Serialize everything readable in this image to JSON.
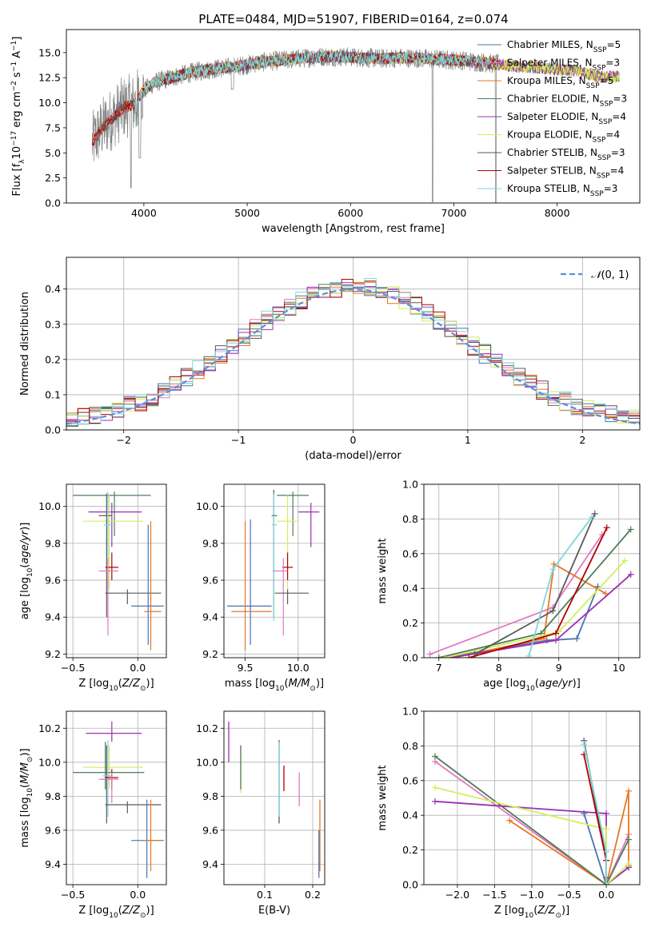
{
  "figure": {
    "title": "PLATE=0484, MJD=51907, FIBERID=0164, z=0.074"
  },
  "colors": {
    "chabrier_miles": "#4c72b0",
    "salpeter_miles": "#e377c2",
    "kroupa_miles": "#e87722",
    "chabrier_elodie": "#4e7d5a",
    "salpeter_elodie": "#9b30b0",
    "kroupa_elodie": "#d4ee5e",
    "chabrier_stelib": "#5a5a5a",
    "salpeter_stelib": "#b00000",
    "kroupa_stelib": "#7fd6dc",
    "data": "#808080",
    "normal": "#5b8fd6"
  },
  "chart_data": [
    {
      "id": "spectrum",
      "type": "line",
      "title": "PLATE=0484, MJD=51907, FIBERID=0164, z=0.074",
      "xlabel": "wavelength [Angstrom, rest frame]",
      "ylabel": "Flux [f_λ 10^-17 erg cm^-2 s^-1 A^-1]",
      "xlim": [
        3250,
        8800
      ],
      "ylim": [
        0,
        17.3
      ],
      "xticks": [
        4000,
        5000,
        6000,
        7000,
        8000
      ],
      "xtick_labels": [
        "4000",
        "5000",
        "6000",
        "7000",
        "8000"
      ],
      "yticks": [
        0,
        2.5,
        5,
        7.5,
        10,
        12.5,
        15
      ],
      "ytick_labels": [
        "0.0",
        "2.5",
        "5.0",
        "7.5",
        "10.0",
        "12.5",
        "15.0"
      ],
      "grid": false,
      "legend_position": "top-right",
      "legend": [
        {
          "name": "Chabrier MILES",
          "n": "5",
          "color_key": "chabrier_miles"
        },
        {
          "name": "Salpeter MILES",
          "n": "3",
          "color_key": "salpeter_miles"
        },
        {
          "name": "Kroupa MILES",
          "n": "5",
          "color_key": "kroupa_miles"
        },
        {
          "name": "Chabrier ELODIE",
          "n": "3",
          "color_key": "chabrier_elodie"
        },
        {
          "name": "Salpeter ELODIE",
          "n": "4",
          "color_key": "salpeter_elodie"
        },
        {
          "name": "Kroupa ELODIE",
          "n": "4",
          "color_key": "kroupa_elodie"
        },
        {
          "name": "Chabrier STELIB",
          "n": "3",
          "color_key": "chabrier_stelib"
        },
        {
          "name": "Salpeter STELIB",
          "n": "4",
          "color_key": "salpeter_stelib"
        },
        {
          "name": "Kroupa STELIB",
          "n": "3",
          "color_key": "kroupa_stelib"
        }
      ],
      "continuum": {
        "x": [
          3500,
          3600,
          3700,
          3800,
          3900,
          4000,
          4100,
          4300,
          4500,
          4700,
          4900,
          5100,
          5300,
          5500,
          5700,
          5900,
          6100,
          6300,
          6500,
          6700,
          6900,
          7100,
          7300,
          7450
        ],
        "y": [
          6.0,
          7.5,
          8.5,
          9.5,
          9.8,
          11.2,
          12.0,
          12.6,
          13.1,
          13.4,
          13.6,
          14.0,
          14.2,
          14.4,
          14.6,
          14.6,
          14.5,
          14.4,
          14.5,
          14.4,
          14.3,
          14.2,
          14.0,
          13.8
        ]
      },
      "model_extension": {
        "x": [
          7450,
          7600,
          7800,
          8000,
          8200,
          8400,
          8600
        ],
        "y": [
          13.8,
          13.6,
          13.5,
          13.3,
          13.2,
          12.6,
          12.6
        ]
      }
    },
    {
      "id": "residuals",
      "type": "line",
      "xlabel": "(data-model)/error",
      "ylabel": "Normed distribution",
      "xlim": [
        -2.5,
        2.5
      ],
      "ylim": [
        0,
        0.49
      ],
      "xticks": [
        -2,
        -1,
        0,
        1,
        2
      ],
      "xtick_labels": [
        "−2",
        "−1",
        "0",
        "1",
        "2"
      ],
      "yticks": [
        0,
        0.1,
        0.2,
        0.3,
        0.4
      ],
      "ytick_labels": [
        "0.0",
        "0.1",
        "0.2",
        "0.3",
        "0.4"
      ],
      "grid": true,
      "legend_position": "top-right",
      "legend_label": "N(0, 1)",
      "bin_width": 0.1,
      "bin_start": -2.5
    },
    {
      "id": "age_vs_Z",
      "type": "scatter",
      "xlabel": "Z [log10(Z/Z⊙)]",
      "ylabel": "age [log10(age/yr)]",
      "xlim": [
        -0.55,
        0.22
      ],
      "ylim": [
        9.18,
        10.12
      ],
      "xticks": [
        -0.5,
        0.0
      ],
      "xtick_labels": [
        "−0.5",
        "0.0"
      ],
      "yticks": [
        9.2,
        9.4,
        9.6,
        9.8,
        10.0
      ],
      "ytick_labels": [
        "9.2",
        "9.4",
        "9.6",
        "9.8",
        "10.0"
      ],
      "grid": true
    },
    {
      "id": "age_vs_mass",
      "type": "scatter",
      "xlabel": "mass [log10(M/M⊙)]",
      "xlim": [
        9.3,
        10.25
      ],
      "ylim": [
        9.18,
        10.12
      ],
      "xticks": [
        9.5,
        10.0
      ],
      "xtick_labels": [
        "9.5",
        "10.0"
      ],
      "yticks": [
        9.2,
        9.4,
        9.6,
        9.8,
        10.0
      ],
      "ytick_labels": [
        "9.2",
        "9.4",
        "9.6",
        "9.8",
        "10.0"
      ],
      "grid": true
    },
    {
      "id": "weight_vs_age",
      "type": "line",
      "xlabel": "age [log10(age/yr)]",
      "ylabel": "mass weight",
      "xlim": [
        6.75,
        10.35
      ],
      "ylim": [
        0,
        1.0
      ],
      "xticks": [
        7,
        8,
        9,
        10
      ],
      "xtick_labels": [
        "7",
        "8",
        "9",
        "10"
      ],
      "yticks": [
        0,
        0.2,
        0.4,
        0.6,
        0.8,
        1.0
      ],
      "ytick_labels": [
        "0.0",
        "0.2",
        "0.4",
        "0.6",
        "0.8",
        "1.0"
      ],
      "grid": true,
      "series": [
        {
          "color_key": "chabrier_miles",
          "x": [
            7.1,
            8.8,
            9.3,
            9.65
          ],
          "y": [
            0.0,
            0.1,
            0.11,
            0.41
          ]
        },
        {
          "color_key": "salpeter_miles",
          "x": [
            6.85,
            8.9,
            9.72
          ],
          "y": [
            0.02,
            0.29,
            0.71
          ]
        },
        {
          "color_key": "kroupa_miles",
          "x": [
            7.25,
            8.75,
            8.92,
            9.78
          ],
          "y": [
            0.0,
            0.11,
            0.54,
            0.37
          ]
        },
        {
          "color_key": "chabrier_elodie",
          "x": [
            7.0,
            8.7,
            10.2
          ],
          "y": [
            0.0,
            0.14,
            0.74
          ]
        },
        {
          "color_key": "salpeter_elodie",
          "x": [
            7.2,
            8.95,
            10.2
          ],
          "y": [
            0.0,
            0.1,
            0.48
          ]
        },
        {
          "color_key": "kroupa_elodie",
          "x": [
            7.1,
            9.0,
            10.1
          ],
          "y": [
            0.0,
            0.15,
            0.56
          ]
        },
        {
          "color_key": "chabrier_stelib",
          "x": [
            7.6,
            8.9,
            9.6
          ],
          "y": [
            0.02,
            0.27,
            0.83
          ]
        },
        {
          "color_key": "salpeter_stelib",
          "x": [
            7.5,
            8.95,
            9.8
          ],
          "y": [
            0.0,
            0.14,
            0.75
          ]
        },
        {
          "color_key": "kroupa_stelib",
          "x": [
            8.5,
            8.9,
            9.55
          ],
          "y": [
            0.01,
            0.51,
            0.81
          ]
        }
      ]
    },
    {
      "id": "mass_vs_Z",
      "type": "scatter",
      "xlabel": "Z [log10(Z/Z⊙)]",
      "ylabel": "mass [log10(M/M⊙)]",
      "xlim": [
        -0.55,
        0.22
      ],
      "ylim": [
        9.28,
        10.3
      ],
      "xticks": [
        -0.5,
        0.0
      ],
      "xtick_labels": [
        "−0.5",
        "0.0"
      ],
      "yticks": [
        9.4,
        9.6,
        9.8,
        10.0,
        10.2
      ],
      "ytick_labels": [
        "9.4",
        "9.6",
        "9.8",
        "10.0",
        "10.2"
      ],
      "grid": true
    },
    {
      "id": "mass_vs_ebv",
      "type": "scatter",
      "xlabel": "E(B-V)",
      "xlim": [
        0.015,
        0.225
      ],
      "ylim": [
        9.28,
        10.3
      ],
      "xticks": [
        0.1,
        0.2
      ],
      "xtick_labels": [
        "0.1",
        "0.2"
      ],
      "yticks": [
        9.4,
        9.6,
        9.8,
        10.0,
        10.2
      ],
      "ytick_labels": [
        "9.4",
        "9.6",
        "9.8",
        "10.0",
        "10.2"
      ],
      "grid": true,
      "points": [
        {
          "color_key": "salpeter_elodie",
          "x": 0.025,
          "y": 10.12,
          "ylo": 10.0,
          "yhi": 10.24
        },
        {
          "color_key": "kroupa_elodie",
          "x": 0.05,
          "y": 9.97,
          "ylo": 9.82,
          "yhi": 10.1
        },
        {
          "color_key": "chabrier_elodie",
          "x": 0.05,
          "y": 9.97,
          "ylo": 9.84,
          "yhi": 10.1
        },
        {
          "color_key": "chabrier_stelib",
          "x": 0.13,
          "y": 9.92,
          "ylo": 9.64,
          "yhi": 10.13
        },
        {
          "color_key": "kroupa_stelib",
          "x": 0.13,
          "y": 9.92,
          "ylo": 9.68,
          "yhi": 10.12
        },
        {
          "color_key": "salpeter_stelib",
          "x": 0.14,
          "y": 9.9,
          "ylo": 9.83,
          "yhi": 9.98
        },
        {
          "color_key": "salpeter_miles",
          "x": 0.172,
          "y": 9.86,
          "ylo": 9.74,
          "yhi": 9.94
        },
        {
          "color_key": "kroupa_miles",
          "x": 0.215,
          "y": 9.55,
          "ylo": 9.36,
          "yhi": 9.78
        },
        {
          "color_key": "chabrier_miles",
          "x": 0.213,
          "y": 9.5,
          "ylo": 9.32,
          "yhi": 9.6
        }
      ]
    },
    {
      "id": "weight_vs_Z",
      "type": "line",
      "xlabel": "Z [log10(Z/Z⊙)]",
      "ylabel": "mass weight",
      "xlim": [
        -2.45,
        0.45
      ],
      "ylim": [
        0,
        1.0
      ],
      "xticks": [
        -2.0,
        -1.5,
        -1.0,
        -0.5,
        0.0
      ],
      "xtick_labels": [
        "−2.0",
        "−1.5",
        "−1.0",
        "−0.5",
        "0.0"
      ],
      "yticks": [
        0,
        0.2,
        0.4,
        0.6,
        0.8,
        1.0
      ],
      "ytick_labels": [
        "0.0",
        "0.2",
        "0.4",
        "0.6",
        "0.8",
        "1.0"
      ],
      "grid": true,
      "series": [
        {
          "color_key": "chabrier_miles",
          "x": [
            -0.3,
            0.0,
            0.3
          ],
          "y": [
            0.41,
            0.0,
            0.1
          ]
        },
        {
          "color_key": "salpeter_miles",
          "x": [
            -2.3,
            0.0,
            0.3
          ],
          "y": [
            0.71,
            0.0,
            0.29
          ]
        },
        {
          "color_key": "kroupa_miles",
          "x": [
            -1.3,
            0.0,
            0.3,
            0.3
          ],
          "y": [
            0.37,
            0.0,
            0.54,
            0.11
          ]
        },
        {
          "color_key": "chabrier_elodie",
          "x": [
            -2.3,
            0.0,
            0.3
          ],
          "y": [
            0.74,
            0.0,
            0.26
          ]
        },
        {
          "color_key": "salpeter_elodie",
          "x": [
            -2.3,
            0.0,
            0.0,
            0.3
          ],
          "y": [
            0.48,
            0.41,
            0.0,
            0.1
          ]
        },
        {
          "color_key": "kroupa_elodie",
          "x": [
            -2.3,
            0.0,
            0.0,
            0.3
          ],
          "y": [
            0.56,
            0.32,
            0.0,
            0.12
          ]
        },
        {
          "color_key": "chabrier_stelib",
          "x": [
            -0.3,
            0.0,
            0.0
          ],
          "y": [
            0.83,
            0.14,
            0.04
          ]
        },
        {
          "color_key": "salpeter_stelib",
          "x": [
            -0.3,
            0.0,
            0.0
          ],
          "y": [
            0.75,
            0.14,
            0.0
          ]
        },
        {
          "color_key": "kroupa_stelib",
          "x": [
            -0.3,
            0.0,
            0.0
          ],
          "y": [
            0.81,
            0.19,
            0.0
          ]
        }
      ]
    }
  ]
}
